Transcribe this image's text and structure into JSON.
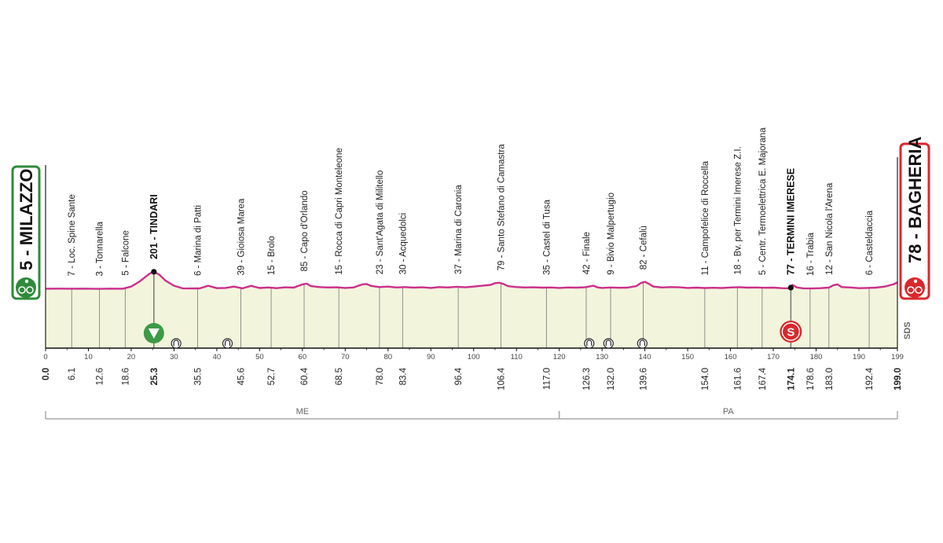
{
  "chart_data": {
    "type": "area",
    "xlim": [
      0,
      199
    ],
    "x_ticks": [
      0,
      10,
      20,
      30,
      40,
      50,
      60,
      70,
      80,
      90,
      100,
      110,
      120,
      130,
      140,
      150,
      160,
      170,
      180,
      190,
      199
    ],
    "start": {
      "label": "5 - MILAZZO",
      "km": 0,
      "km_label": "0.0"
    },
    "finish": {
      "label": "78 - BAGHERIA",
      "km": 199,
      "km_label": "199.0"
    },
    "profile": [
      [
        0,
        5
      ],
      [
        3,
        6
      ],
      [
        6,
        5
      ],
      [
        9,
        6
      ],
      [
        12,
        4
      ],
      [
        15,
        6
      ],
      [
        18,
        5
      ],
      [
        20,
        30
      ],
      [
        22,
        90
      ],
      [
        24.3,
        180
      ],
      [
        25.3,
        201
      ],
      [
        26.5,
        170
      ],
      [
        28,
        100
      ],
      [
        30,
        40
      ],
      [
        32,
        10
      ],
      [
        34,
        8
      ],
      [
        36,
        9
      ],
      [
        38,
        40
      ],
      [
        40,
        12
      ],
      [
        42,
        15
      ],
      [
        44,
        30
      ],
      [
        46,
        10
      ],
      [
        48,
        38
      ],
      [
        50,
        14
      ],
      [
        52,
        20
      ],
      [
        54,
        12
      ],
      [
        56,
        22
      ],
      [
        58,
        18
      ],
      [
        60,
        55
      ],
      [
        61,
        65
      ],
      [
        62,
        35
      ],
      [
        64,
        25
      ],
      [
        66,
        20
      ],
      [
        68,
        22
      ],
      [
        70,
        15
      ],
      [
        72,
        20
      ],
      [
        74,
        55
      ],
      [
        75,
        60
      ],
      [
        76,
        38
      ],
      [
        78,
        25
      ],
      [
        80,
        30
      ],
      [
        82,
        20
      ],
      [
        84,
        25
      ],
      [
        86,
        18
      ],
      [
        88,
        22
      ],
      [
        90,
        15
      ],
      [
        92,
        25
      ],
      [
        94,
        20
      ],
      [
        96,
        28
      ],
      [
        98,
        22
      ],
      [
        100,
        30
      ],
      [
        102,
        40
      ],
      [
        104,
        50
      ],
      [
        105,
        70
      ],
      [
        106,
        75
      ],
      [
        107,
        60
      ],
      [
        108,
        35
      ],
      [
        110,
        25
      ],
      [
        112,
        20
      ],
      [
        114,
        22
      ],
      [
        116,
        18
      ],
      [
        118,
        20
      ],
      [
        120,
        15
      ],
      [
        122,
        20
      ],
      [
        124,
        18
      ],
      [
        126,
        22
      ],
      [
        128,
        40
      ],
      [
        129,
        20
      ],
      [
        130,
        15
      ],
      [
        132,
        20
      ],
      [
        134,
        16
      ],
      [
        136,
        18
      ],
      [
        138,
        35
      ],
      [
        139,
        70
      ],
      [
        140,
        85
      ],
      [
        141,
        60
      ],
      [
        142,
        30
      ],
      [
        144,
        20
      ],
      [
        146,
        25
      ],
      [
        148,
        22
      ],
      [
        150,
        15
      ],
      [
        152,
        18
      ],
      [
        154,
        14
      ],
      [
        156,
        16
      ],
      [
        158,
        14
      ],
      [
        160,
        20
      ],
      [
        162,
        24
      ],
      [
        164,
        18
      ],
      [
        166,
        20
      ],
      [
        168,
        16
      ],
      [
        170,
        18
      ],
      [
        172,
        12
      ],
      [
        174,
        10
      ],
      [
        174.5,
        50
      ],
      [
        175.5,
        20
      ],
      [
        177,
        10
      ],
      [
        179,
        8
      ],
      [
        181,
        12
      ],
      [
        183,
        18
      ],
      [
        184,
        45
      ],
      [
        185,
        55
      ],
      [
        186,
        25
      ],
      [
        188,
        20
      ],
      [
        190,
        12
      ],
      [
        192,
        15
      ],
      [
        194,
        18
      ],
      [
        196,
        30
      ],
      [
        198,
        55
      ],
      [
        199,
        78
      ]
    ],
    "waypoints": [
      {
        "label": "7 - Loc. Spine Sante",
        "km": 6.1,
        "km_label": "6.1"
      },
      {
        "label": "3 - Tonnarella",
        "km": 12.6,
        "km_label": "12.6"
      },
      {
        "label": "5 - Falcone",
        "km": 18.6,
        "km_label": "18.6"
      },
      {
        "label": "201 - TINDARI",
        "km": 25.3,
        "km_label": "25.3",
        "bold": true
      },
      {
        "label": "6 - Marina di Patti",
        "km": 35.5,
        "km_label": "35.5"
      },
      {
        "label": "39 - Gioiosa Marea",
        "km": 45.6,
        "km_label": "45.6"
      },
      {
        "label": "15 - Brolo",
        "km": 52.7,
        "km_label": "52.7"
      },
      {
        "label": "85 - Capo d'Orlando",
        "km": 60.4,
        "km_label": "60.4"
      },
      {
        "label": "15 - Rocca di Capri Monteleone",
        "km": 68.5,
        "km_label": "68.5"
      },
      {
        "label": "23 - Sant'Agata di Militello",
        "km": 78.0,
        "km_label": "78.0"
      },
      {
        "label": "30 - Acquedolci",
        "km": 83.4,
        "km_label": "83.4"
      },
      {
        "label": "37 - Marina di Caronia",
        "km": 96.4,
        "km_label": "96.4"
      },
      {
        "label": "79 - Santo Stefano di Camastra",
        "km": 106.4,
        "km_label": "106.4"
      },
      {
        "label": "35 - Castel di Tusa",
        "km": 117.0,
        "km_label": "117.0"
      },
      {
        "label": "42 - Finale",
        "km": 126.3,
        "km_label": "126.3"
      },
      {
        "label": "9 - Bivio Malpertugio",
        "km": 132.0,
        "km_label": "132.0"
      },
      {
        "label": "82 - Cefalù",
        "km": 139.6,
        "km_label": "139.6"
      },
      {
        "label": "11 - Campofelice di Roccella",
        "km": 154.0,
        "km_label": "154.0"
      },
      {
        "label": "18 - Bv. per Termini Imerese Z.I.",
        "km": 161.6,
        "km_label": "161.6"
      },
      {
        "label": "5 - Centr. Termoelettrica E. Majorana",
        "km": 167.4,
        "km_label": "167.4"
      },
      {
        "label": "77 - TERMINI IMERESE",
        "km": 174.1,
        "km_label": "174.1",
        "bold": true
      },
      {
        "label": "16 - Trabia",
        "km": 178.6,
        "km_label": "178.6"
      },
      {
        "label": "12 - San Nicola l'Arena",
        "km": 183.0,
        "km_label": "183.0"
      },
      {
        "label": "6 - Casteldaccia",
        "km": 192.4,
        "km_label": "192.4"
      }
    ],
    "markers": [
      {
        "type": "gpm-green",
        "km": 25.3,
        "icon": "green-triangle-icon"
      },
      {
        "type": "tunnel",
        "km": 30.5,
        "icon": "tunnel-icon"
      },
      {
        "type": "tunnel",
        "km": 42.5,
        "icon": "tunnel-icon"
      },
      {
        "type": "tunnel",
        "km": 127.0,
        "icon": "tunnel-icon"
      },
      {
        "type": "tunnel",
        "km": 131.5,
        "icon": "tunnel-icon"
      },
      {
        "type": "tunnel",
        "km": 139.4,
        "icon": "tunnel-icon"
      },
      {
        "type": "sprint",
        "km": 174.1,
        "icon": "sprint-s-icon",
        "letter": "S"
      }
    ],
    "provinces": [
      {
        "label": "ME",
        "from": 0,
        "to": 120
      },
      {
        "label": "PA",
        "from": 120,
        "to": 199
      }
    ],
    "side_label": "SDS"
  },
  "colors": {
    "profile_line": "#cc2f8c",
    "profile_fill": "#f2f5dc",
    "start_badge": "#2e8b3a",
    "finish_badge": "#d8282c",
    "gpm_green": "#3e9a48",
    "sprint": "#d8282c"
  }
}
